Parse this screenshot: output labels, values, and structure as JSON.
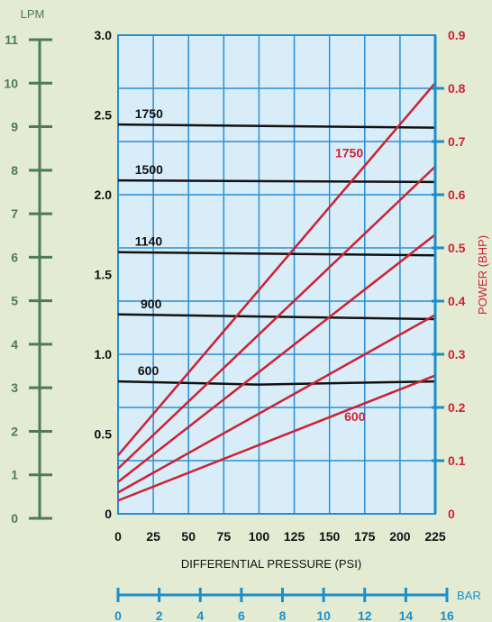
{
  "chart_data": {
    "type": "line",
    "x_axis": {
      "label": "DIFFERENTIAL PRESSURE  (PSI)",
      "range": [
        0,
        225
      ],
      "ticks": [
        0,
        25,
        50,
        75,
        100,
        125,
        150,
        175,
        200,
        225
      ]
    },
    "y_left": {
      "range": [
        0,
        3.0
      ],
      "ticks": [
        "0",
        "0.5",
        "1.0",
        "1.5",
        "2.0",
        "2.5",
        "3.0"
      ]
    },
    "y_right": {
      "label": "POWER  (BHP)",
      "range": [
        0,
        0.9
      ],
      "ticks": [
        "0",
        "0.1",
        "0.2",
        "0.3",
        "0.4",
        "0.5",
        "0.6",
        "0.7",
        "0.8",
        "0.9"
      ]
    },
    "lpm_axis": {
      "label": "LPM",
      "range": [
        0,
        11
      ],
      "ticks": [
        "0",
        "1",
        "2",
        "3",
        "4",
        "5",
        "6",
        "7",
        "8",
        "9",
        "10",
        "11"
      ]
    },
    "bar_axis": {
      "label": "BAR",
      "range": [
        0,
        16
      ],
      "ticks": [
        "0",
        "2",
        "4",
        "6",
        "8",
        "10",
        "12",
        "14",
        "16"
      ]
    },
    "flow_series": [
      {
        "name": "1750",
        "label_at_x": 12,
        "values": [
          [
            0,
            2.44
          ],
          [
            225,
            2.42
          ]
        ]
      },
      {
        "name": "1500",
        "label_at_x": 12,
        "values": [
          [
            0,
            2.09
          ],
          [
            225,
            2.08
          ]
        ]
      },
      {
        "name": "1140",
        "label_at_x": 12,
        "values": [
          [
            0,
            1.64
          ],
          [
            225,
            1.62
          ]
        ]
      },
      {
        "name": "900",
        "label_at_x": 16,
        "values": [
          [
            0,
            1.25
          ],
          [
            225,
            1.22
          ]
        ]
      },
      {
        "name": "600",
        "label_at_x": 14,
        "values": [
          [
            0,
            0.83
          ],
          [
            100,
            0.81
          ],
          [
            225,
            0.83
          ]
        ]
      }
    ],
    "power_series": [
      {
        "name": "1750",
        "values": [
          [
            0,
            0.11
          ],
          [
            225,
            0.81
          ]
        ]
      },
      {
        "values": [
          [
            0,
            0.085
          ],
          [
            225,
            0.653
          ]
        ]
      },
      {
        "values": [
          [
            0,
            0.06
          ],
          [
            225,
            0.525
          ]
        ]
      },
      {
        "values": [
          [
            0,
            0.04
          ],
          [
            225,
            0.374
          ]
        ]
      },
      {
        "name": "600",
        "values": [
          [
            0,
            0.025
          ],
          [
            225,
            0.26
          ]
        ]
      }
    ],
    "power_labels": [
      {
        "text": "1750",
        "x": 164,
        "y": 0.67
      },
      {
        "text": "600",
        "x": 168,
        "y": 0.175
      }
    ],
    "grid": true,
    "colors": {
      "plot_bg": "#d8edf8",
      "grid": "#2a8ed6",
      "flow_line": "#111111",
      "power_line": "#cc2233",
      "lpm_axis": "#4d7a5a",
      "bar_axis": "#1a8fc9",
      "power_axis": "#1a8fc9",
      "power_ticks": "#cc2233"
    }
  }
}
